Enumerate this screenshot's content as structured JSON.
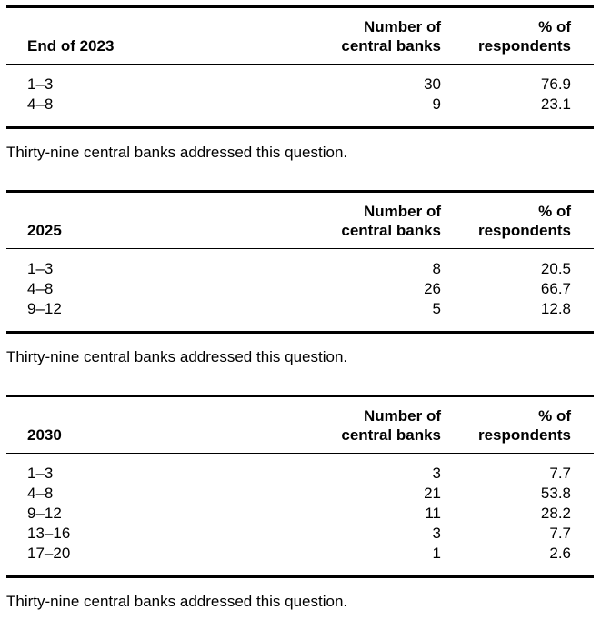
{
  "colors": {
    "background": "#ffffff",
    "text": "#000000",
    "rule": "#000000"
  },
  "tables": [
    {
      "row_header": "End of 2023",
      "col_number_header": "Number of\ncentral banks",
      "col_pct_header": "% of\nrespondents",
      "rows": [
        {
          "label": "1–3",
          "count": "30",
          "pct": "76.9"
        },
        {
          "label": "4–8",
          "count": "9",
          "pct": "23.1"
        }
      ],
      "note": "Thirty-nine central banks addressed this question."
    },
    {
      "row_header": "2025",
      "col_number_header": "Number of\ncentral banks",
      "col_pct_header": "% of\nrespondents",
      "rows": [
        {
          "label": "1–3",
          "count": "8",
          "pct": "20.5"
        },
        {
          "label": "4–8",
          "count": "26",
          "pct": "66.7"
        },
        {
          "label": "9–12",
          "count": "5",
          "pct": "12.8"
        }
      ],
      "note": "Thirty-nine central banks addressed this question."
    },
    {
      "row_header": "2030",
      "col_number_header": "Number of\ncentral banks",
      "col_pct_header": "% of\nrespondents",
      "rows": [
        {
          "label": "1–3",
          "count": "3",
          "pct": "7.7"
        },
        {
          "label": "4–8",
          "count": "21",
          "pct": "53.8"
        },
        {
          "label": "9–12",
          "count": "11",
          "pct": "28.2"
        },
        {
          "label": "13–16",
          "count": "3",
          "pct": "7.7"
        },
        {
          "label": "17–20",
          "count": "1",
          "pct": "2.6"
        }
      ],
      "note": "Thirty-nine central banks addressed this question."
    }
  ]
}
